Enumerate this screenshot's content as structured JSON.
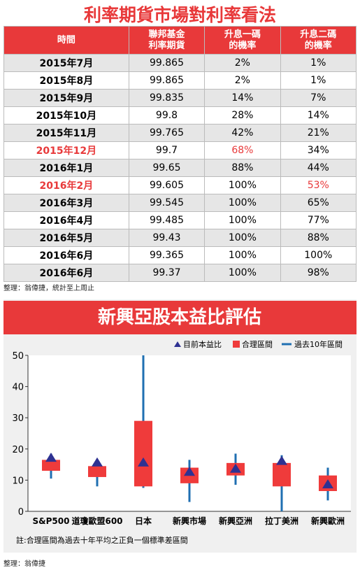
{
  "top": {
    "title": "利率期貨市場對利率看法",
    "table": {
      "header": [
        "時間",
        "聯邦基金\n利率期貨",
        "升息一碼\n的機率",
        "升息二碼\n的機率"
      ],
      "rows": [
        [
          "2015年7月",
          "99.865",
          "2%",
          "1%"
        ],
        [
          "2015年8月",
          "99.865",
          "2%",
          "1%"
        ],
        [
          "2015年9月",
          "99.835",
          "14%",
          "7%"
        ],
        [
          "2015年10月",
          "99.8",
          "28%",
          "14%"
        ],
        [
          "2015年11月",
          "99.765",
          "42%",
          "21%"
        ],
        [
          "2015年12月",
          "99.7",
          "68%",
          "34%"
        ],
        [
          "2016年1月",
          "99.65",
          "88%",
          "44%"
        ],
        [
          "2016年2月",
          "99.605",
          "100%",
          "53%"
        ],
        [
          "2016年3月",
          "99.545",
          "100%",
          "65%"
        ],
        [
          "2016年4月",
          "99.485",
          "100%",
          "77%"
        ],
        [
          "2016年5月",
          "99.43",
          "100%",
          "88%"
        ],
        [
          "2016年6月",
          "99.365",
          "100%",
          "100%"
        ],
        [
          "2016年6月",
          "99.37",
          "100%",
          "98%"
        ]
      ],
      "highlight_color": "#e8393a",
      "highlighted": [
        [
          5,
          0
        ],
        [
          5,
          2
        ],
        [
          7,
          0
        ],
        [
          7,
          3
        ]
      ]
    },
    "note": "整理：翁偉捷，統計至上周止"
  },
  "chart_data": {
    "type": "range",
    "title": "新興亞股本益比評估",
    "categories": [
      "S&P500",
      "道瓊歐盟600",
      "日本",
      "新興市場",
      "新興亞洲",
      "拉丁美洲",
      "新興歐洲"
    ],
    "series": [
      {
        "name": "目前本益比",
        "color": "#2e3192",
        "values": [
          17,
          15.5,
          15.5,
          12.5,
          13.5,
          16,
          8.5
        ]
      },
      {
        "name": "合理區間",
        "color": "#ef3b3b",
        "low": [
          13,
          11,
          8,
          9,
          11.5,
          8,
          6.5
        ],
        "high": [
          16.5,
          14.5,
          29,
          14,
          15.5,
          15.5,
          11.5
        ]
      },
      {
        "name": "過去10年區間",
        "color": "#1f6fb2",
        "low": [
          10.5,
          8,
          7.5,
          3,
          8.5,
          0,
          3.5
        ],
        "high": [
          18.5,
          15.5,
          50,
          16.5,
          18.5,
          18,
          14
        ]
      }
    ],
    "ylim": [
      0,
      50
    ],
    "yticks": [
      0,
      10,
      20,
      30,
      40,
      50
    ],
    "note": "註:合理區間為過去十年平均之正負一個標準差區間",
    "source": "整理：翁偉捷"
  }
}
